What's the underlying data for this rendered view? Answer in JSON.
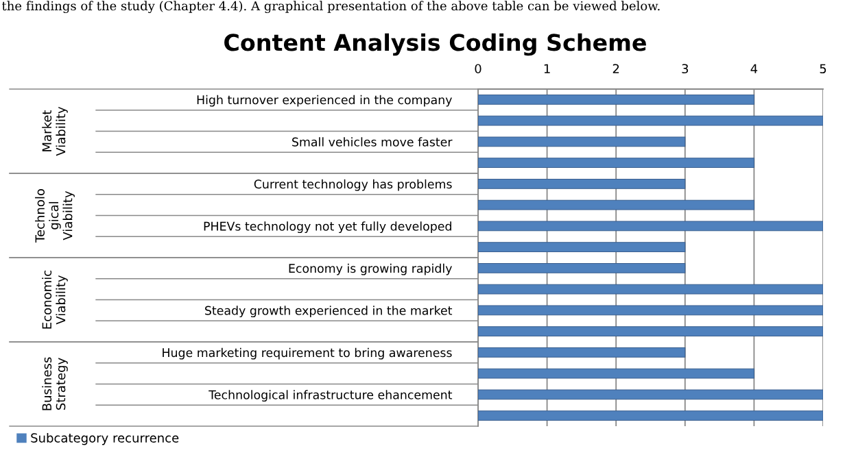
{
  "chart_data": {
    "type": "bar",
    "orientation": "horizontal",
    "title": "Content Analysis Coding Scheme",
    "categories": [
      "High turnover experienced in the company",
      null,
      "Small vehicles move faster",
      null,
      "Current technology has problems",
      null,
      "PHEVs technology not yet fully developed",
      null,
      "Economy is growing rapidly",
      null,
      "Steady growth experienced in the market",
      null,
      "Huge marketing requirement to bring awareness",
      null,
      "Technological infrastructure ehancement",
      null
    ],
    "series": [
      {
        "name": "Subcategory recurrence",
        "color": "#4f81bd",
        "values": [
          4,
          5,
          3,
          4,
          3,
          4,
          5,
          3,
          3,
          5,
          5,
          5,
          3,
          4,
          5,
          5
        ]
      }
    ],
    "xlim": [
      0,
      5
    ],
    "xticks": [
      0,
      1,
      2,
      3,
      4,
      5
    ],
    "grid": "x",
    "legend": "bottom left",
    "annotations": [
      "the findings of the study (Chapter 4.4). A graphical presentation of the above table can be viewed below.",
      "Market\nViability",
      "Technolo\ngical\nViability",
      "Economic\nViability",
      "Business\nStrategy"
    ]
  }
}
